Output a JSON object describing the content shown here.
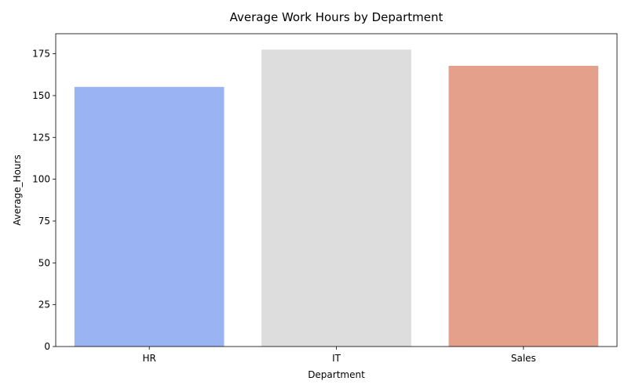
{
  "chart_data": {
    "type": "bar",
    "title": "Average Work Hours by Department",
    "xlabel": "Department",
    "ylabel": "Average_Hours",
    "categories": [
      "HR",
      "IT",
      "Sales"
    ],
    "values": [
      155.2,
      177.5,
      167.8
    ],
    "colors": [
      "#9ab3f2",
      "#dddddd",
      "#e4a08a"
    ],
    "ylim": [
      0,
      187
    ],
    "yticks": [
      0,
      25,
      50,
      75,
      100,
      125,
      150,
      175
    ],
    "grid": false,
    "legend": "none"
  }
}
